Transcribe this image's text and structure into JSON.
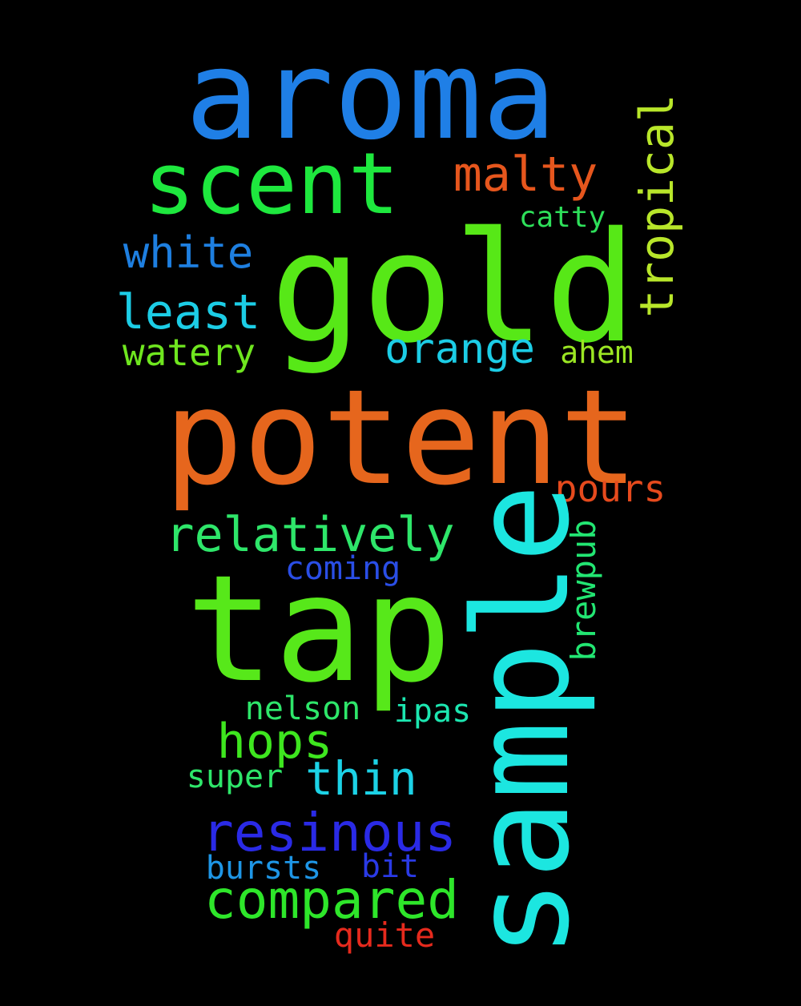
{
  "words": {
    "aroma": {
      "text": "aroma",
      "color": "#1f7fe6"
    },
    "scent": {
      "text": "scent",
      "color": "#1ee83e"
    },
    "malty": {
      "text": "malty",
      "color": "#e6561d"
    },
    "tropical": {
      "text": "tropical",
      "color": "#b8e62a"
    },
    "catty": {
      "text": "catty",
      "color": "#2ee05a"
    },
    "white": {
      "text": "white",
      "color": "#1e7fe0"
    },
    "gold": {
      "text": "gold",
      "color": "#57e817"
    },
    "least": {
      "text": "least",
      "color": "#1ccde6"
    },
    "watery": {
      "text": "watery",
      "color": "#6fe61f"
    },
    "orange": {
      "text": "orange",
      "color": "#1ccde6"
    },
    "ahem": {
      "text": "ahem",
      "color": "#9be623"
    },
    "potent": {
      "text": "potent",
      "color": "#e6661d"
    },
    "pours": {
      "text": "pours",
      "color": "#e64a1d"
    },
    "relatively": {
      "text": "relatively",
      "color": "#2ee66a"
    },
    "sample": {
      "text": "sample",
      "color": "#1ce6e0"
    },
    "brewpub": {
      "text": "brewpub",
      "color": "#22e672"
    },
    "coming": {
      "text": "coming",
      "color": "#2a4ee6"
    },
    "tap": {
      "text": "tap",
      "color": "#57e81a"
    },
    "nelson": {
      "text": "nelson",
      "color": "#2ee66a"
    },
    "ipas": {
      "text": "ipas",
      "color": "#1ce6b0"
    },
    "hops": {
      "text": "hops",
      "color": "#3ee61f"
    },
    "thin": {
      "text": "thin",
      "color": "#1cd2e6"
    },
    "super": {
      "text": "super",
      "color": "#2ee66a"
    },
    "resinous": {
      "text": "resinous",
      "color": "#2a2ae6"
    },
    "bursts": {
      "text": "bursts",
      "color": "#1e96e6"
    },
    "bit": {
      "text": "bit",
      "color": "#2a3ae6"
    },
    "compared": {
      "text": "compared",
      "color": "#2ee62a"
    },
    "quite": {
      "text": "quite",
      "color": "#e62a1d"
    }
  }
}
